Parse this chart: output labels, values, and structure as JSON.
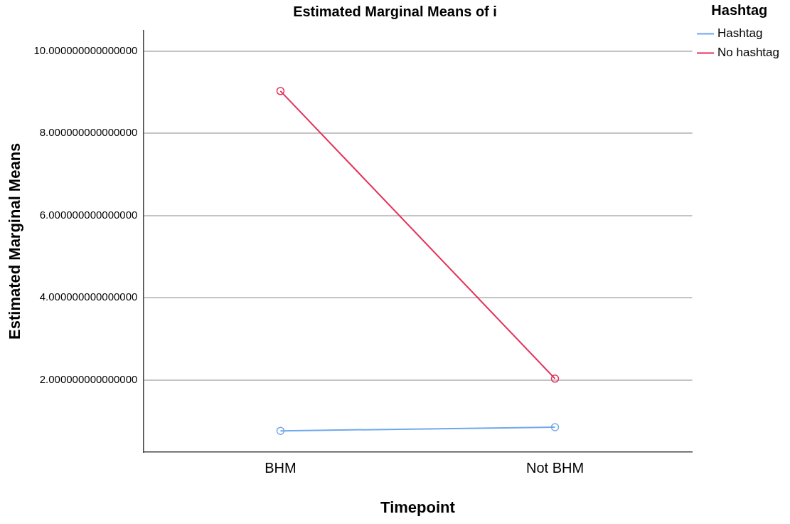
{
  "chart_data": {
    "type": "line",
    "title": "Estimated Marginal Means of i",
    "xlabel": "Timepoint",
    "ylabel": "Estimated Marginal Means",
    "legend_title": "Hashtag",
    "categories": [
      "BHM",
      "Not BHM"
    ],
    "series": [
      {
        "name": "Hashtag",
        "color": "#6fa8ec",
        "values": [
          0.76,
          0.85
        ]
      },
      {
        "name": "No hashtag",
        "color": "#e3305a",
        "values": [
          9.03,
          2.03
        ]
      }
    ],
    "ylim": [
      0.25,
      10.5
    ],
    "yticks": [
      {
        "value": 2,
        "label": "2.000000000000000"
      },
      {
        "value": 4,
        "label": "4.000000000000000"
      },
      {
        "value": 6,
        "label": "6.000000000000000"
      },
      {
        "value": 8,
        "label": "8.000000000000000"
      },
      {
        "value": 10,
        "label": "10.000000000000000"
      }
    ],
    "grid": "y",
    "legend": "top right",
    "marker": "circle",
    "line_style": "solid"
  }
}
